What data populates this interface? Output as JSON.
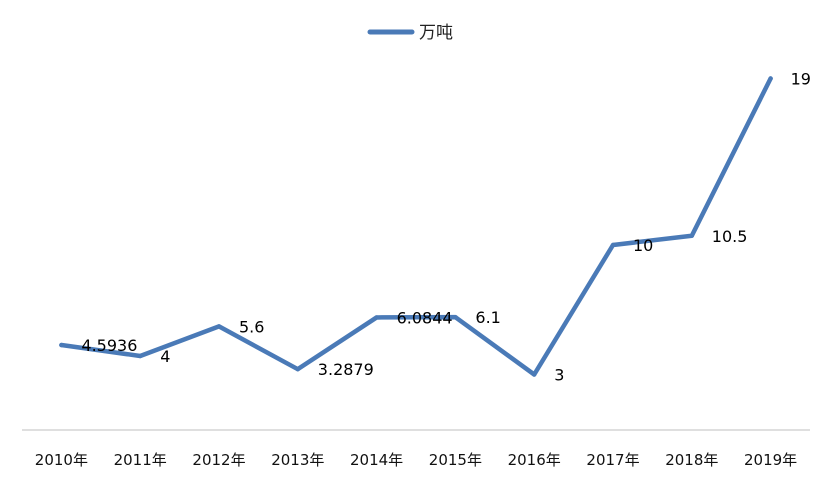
{
  "chart_data": {
    "type": "line",
    "title": "",
    "xlabel": "",
    "ylabel": "",
    "categories": [
      "2010年",
      "2011年",
      "2012年",
      "2013年",
      "2014年",
      "2015年",
      "2016年",
      "2017年",
      "2018年",
      "2019年"
    ],
    "series": [
      {
        "name": "万吨",
        "values": [
          4.5936,
          4,
          5.6,
          3.2879,
          6.0844,
          6.1,
          3,
          10,
          10.5,
          19
        ],
        "labels": [
          "4.5936",
          "4",
          "5.6",
          "3.2879",
          "6.0844",
          "6.1",
          "3",
          "10",
          "10.5",
          "19"
        ],
        "color": "#4a7ab7"
      }
    ],
    "ylim": [
      0,
      20
    ],
    "grid": false,
    "legend_position": "top-center",
    "axis_color": "#bfbfbf"
  }
}
